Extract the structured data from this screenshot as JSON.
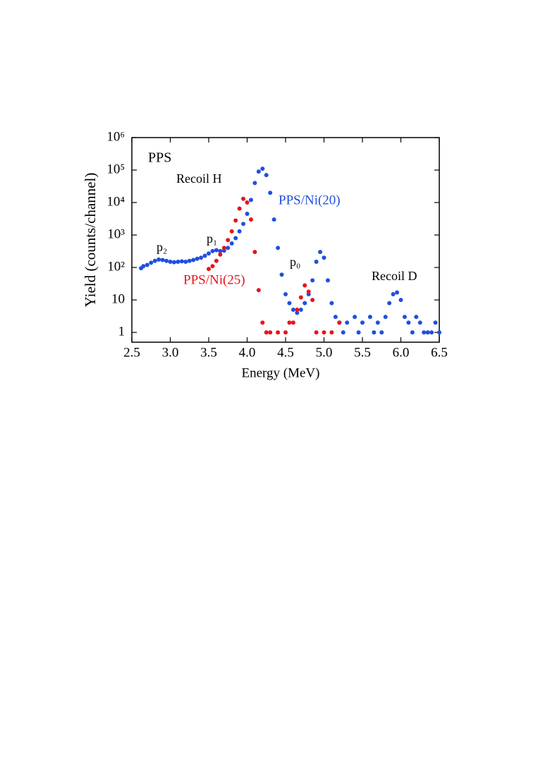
{
  "chart_data": {
    "type": "scatter",
    "x_label": "Energy (MeV)",
    "y_label": "Yield (counts/channel)",
    "log_y": true,
    "xlim": [
      2.5,
      6.5
    ],
    "xticks": [
      2.5,
      {
        "value": 3,
        "label": "3.0"
      },
      3.5,
      {
        "value": 4,
        "label": "4.0"
      },
      4.5,
      {
        "value": 5,
        "label": "5.0"
      },
      5.5,
      {
        "value": 6,
        "label": "6.0"
      },
      6.5
    ],
    "ylim": [
      0.5,
      1000000
    ],
    "yticks": [
      1,
      10,
      {
        "value": 100,
        "label": "10²"
      },
      {
        "value": 1000,
        "label": "10³"
      },
      {
        "value": 10000,
        "label": "10⁴"
      },
      {
        "value": 100000,
        "label": "10⁵"
      },
      {
        "value": 1000000,
        "label": "10⁶"
      }
    ],
    "annotations": [
      "PPS",
      "Recoil H",
      "p₂",
      "p₁",
      "p₀",
      "Recoil D"
    ],
    "series": [
      {
        "name": "PPS/Ni(20)",
        "color": "#1f4fe0",
        "x": [
          2.62,
          2.65,
          2.7,
          2.75,
          2.8,
          2.85,
          2.9,
          2.95,
          3.0,
          3.05,
          3.1,
          3.15,
          3.2,
          3.25,
          3.3,
          3.35,
          3.4,
          3.45,
          3.5,
          3.55,
          3.6,
          3.65,
          3.7,
          3.75,
          3.8,
          3.85,
          3.9,
          3.95,
          4.0,
          4.05,
          4.1,
          4.15,
          4.2,
          4.25,
          4.3,
          4.35,
          4.4,
          4.45,
          4.5,
          4.55,
          4.6,
          4.65,
          4.7,
          4.75,
          4.8,
          4.85,
          4.9,
          4.95,
          5.0,
          5.05,
          5.1,
          5.15,
          5.2,
          5.25,
          5.3,
          5.4,
          5.45,
          5.5,
          5.6,
          5.65,
          5.7,
          5.75,
          5.8,
          5.85,
          5.9,
          5.95,
          6.0,
          6.05,
          6.1,
          6.15,
          6.2,
          6.25,
          6.3,
          6.35,
          6.4,
          6.45,
          6.5
        ],
        "values": [
          95,
          110,
          120,
          140,
          160,
          175,
          170,
          160,
          150,
          145,
          150,
          155,
          150,
          160,
          170,
          185,
          200,
          230,
          270,
          320,
          340,
          320,
          330,
          400,
          550,
          800,
          1300,
          2200,
          4500,
          12000,
          40000,
          90000,
          110000,
          70000,
          20000,
          3000,
          400,
          60,
          15,
          8,
          5,
          4,
          5,
          8,
          15,
          40,
          150,
          300,
          200,
          40,
          8,
          3,
          2,
          1,
          2,
          3,
          1,
          2,
          3,
          1,
          2,
          1,
          3,
          8,
          15,
          17,
          10,
          3,
          2,
          1,
          3,
          2,
          1,
          1,
          1,
          2,
          1
        ]
      },
      {
        "name": "PPS/Ni(25)",
        "color": "#e8141c",
        "x": [
          3.5,
          3.55,
          3.6,
          3.65,
          3.7,
          3.75,
          3.8,
          3.85,
          3.9,
          3.95,
          4.0,
          4.05,
          4.1,
          4.15,
          4.2,
          4.25,
          4.3,
          4.4,
          4.5,
          4.55,
          4.6,
          4.65,
          4.7,
          4.75,
          4.8,
          4.85,
          4.9,
          5.0,
          5.1,
          5.2
        ],
        "values": [
          90,
          110,
          160,
          250,
          400,
          700,
          1300,
          2800,
          6500,
          13000,
          10000,
          3000,
          300,
          20,
          2,
          1,
          1,
          1,
          1,
          2,
          2,
          5,
          12,
          28,
          18,
          10,
          1,
          1,
          1,
          2
        ]
      }
    ]
  }
}
